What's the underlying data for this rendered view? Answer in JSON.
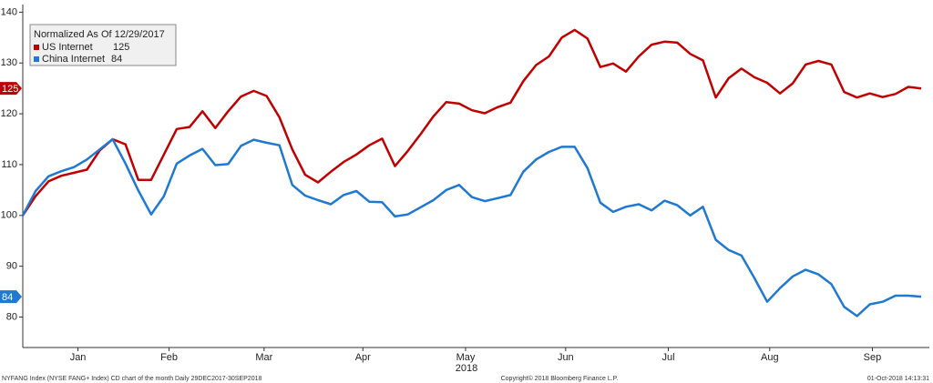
{
  "chart_data": {
    "type": "line",
    "legend_title": "Normalized As Of 12/29/2017",
    "x_label": "2018",
    "footer_left": "NYFANG Index (NYSE FANG+ Index) CD chart of the month  Daily 29DEC2017-30SEP2018",
    "footer_center": "Copyright© 2018 Bloomberg Finance L.P.",
    "footer_right": "01-Oct-2018 14:13:31",
    "xlim": [
      0,
      70
    ],
    "xticks": [
      {
        "value": 4.3,
        "label": "Jan"
      },
      {
        "value": 11.4,
        "label": "Feb"
      },
      {
        "value": 18.8,
        "label": "Mar"
      },
      {
        "value": 26.5,
        "label": "Apr"
      },
      {
        "value": 34.5,
        "label": "May"
      },
      {
        "value": 42.3,
        "label": "Jun"
      },
      {
        "value": 50.3,
        "label": "Jul"
      },
      {
        "value": 58.2,
        "label": "Aug"
      },
      {
        "value": 66.2,
        "label": "Sep"
      }
    ],
    "ylim": [
      74,
      141.5
    ],
    "yticks": [
      80,
      90,
      100,
      110,
      120,
      130,
      140
    ],
    "series": [
      {
        "name": "US Internet",
        "color": "#c00000",
        "values": [
          100,
          103.8,
          106.7,
          107.8,
          108.4,
          109,
          112.8,
          115,
          114,
          107,
          107,
          112,
          117,
          117.4,
          120.5,
          117.2,
          120.5,
          123.4,
          124.5,
          123.5,
          119.3,
          113,
          108,
          106.5,
          108.6,
          110.5,
          112,
          113.8,
          115.1,
          109.7,
          112.7,
          116,
          119.5,
          122.3,
          122,
          120.7,
          120.1,
          121.3,
          122.2,
          126.4,
          129.6,
          131.3,
          135,
          136.5,
          134.8,
          129.2,
          129.9,
          128.3,
          131.3,
          133.6,
          134.2,
          134,
          131.8,
          130.5,
          123.2,
          127,
          128.9,
          127.2,
          126.1,
          124,
          126,
          129.7,
          130.4,
          129.7,
          124.3,
          123.2,
          124,
          123.3,
          123.9,
          125.3,
          125
        ]
      },
      {
        "name": "China Internet",
        "color": "#1f78d1",
        "values": [
          100,
          104.8,
          107.7,
          108.7,
          109.5,
          111,
          113,
          115,
          110.2,
          104.9,
          100.2,
          103.8,
          110.2,
          111.8,
          113.1,
          109.9,
          110.1,
          113.7,
          114.9,
          114.3,
          113.8,
          106,
          103.9,
          103,
          102.2,
          104,
          104.8,
          102.7,
          102.6,
          99.8,
          100.2,
          101.6,
          103,
          105,
          106,
          103.6,
          102.8,
          103.4,
          104,
          108.6,
          111,
          112.5,
          113.5,
          113.5,
          109.3,
          102.5,
          100.7,
          101.7,
          102.2,
          101,
          102.9,
          102,
          100,
          101.7,
          95.2,
          93.2,
          92.1,
          87.7,
          83,
          85.7,
          88,
          89.3,
          88.4,
          86.5,
          82,
          80.2,
          82.5,
          83,
          84.2,
          84.2,
          84
        ]
      }
    ]
  }
}
